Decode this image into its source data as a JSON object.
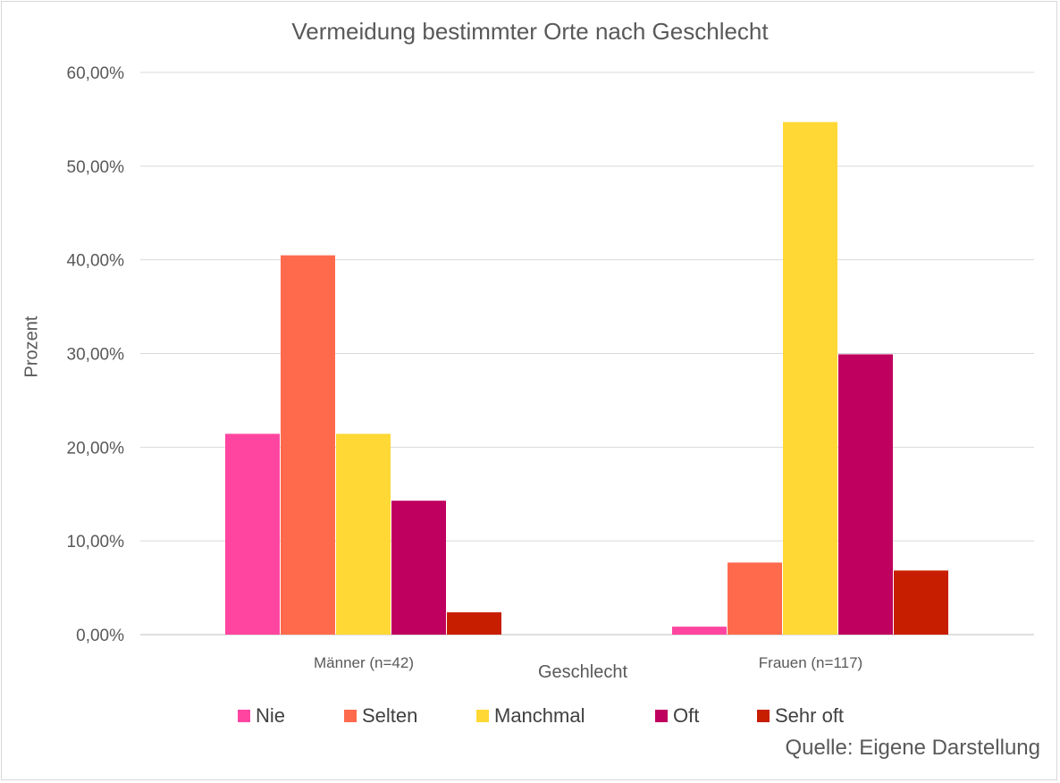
{
  "chart_data": {
    "type": "bar",
    "title": "Vermeidung bestimmter Orte nach Geschlecht",
    "xlabel": "Geschlecht",
    "ylabel": "Prozent",
    "categories": [
      "Männer (n=42)",
      "Frauen (n=117)"
    ],
    "series": [
      {
        "name": "Nie",
        "color": "#ff45a0",
        "values": [
          21.43,
          0.85
        ]
      },
      {
        "name": "Selten",
        "color": "#ff6a4d",
        "values": [
          40.48,
          7.69
        ]
      },
      {
        "name": "Manchmal",
        "color": "#ffd835",
        "values": [
          21.43,
          54.7
        ]
      },
      {
        "name": "Oft",
        "color": "#c0005e",
        "values": [
          14.29,
          29.91
        ]
      },
      {
        "name": "Sehr oft",
        "color": "#c81e00",
        "values": [
          2.38,
          6.84
        ]
      }
    ],
    "ylim": [
      0,
      60
    ],
    "yticks": [
      "0,00%",
      "10,00%",
      "20,00%",
      "30,00%",
      "40,00%",
      "50,00%",
      "60,00%"
    ],
    "grid": true,
    "legend_position": "bottom",
    "source": "Quelle: Eigene Darstellung"
  }
}
